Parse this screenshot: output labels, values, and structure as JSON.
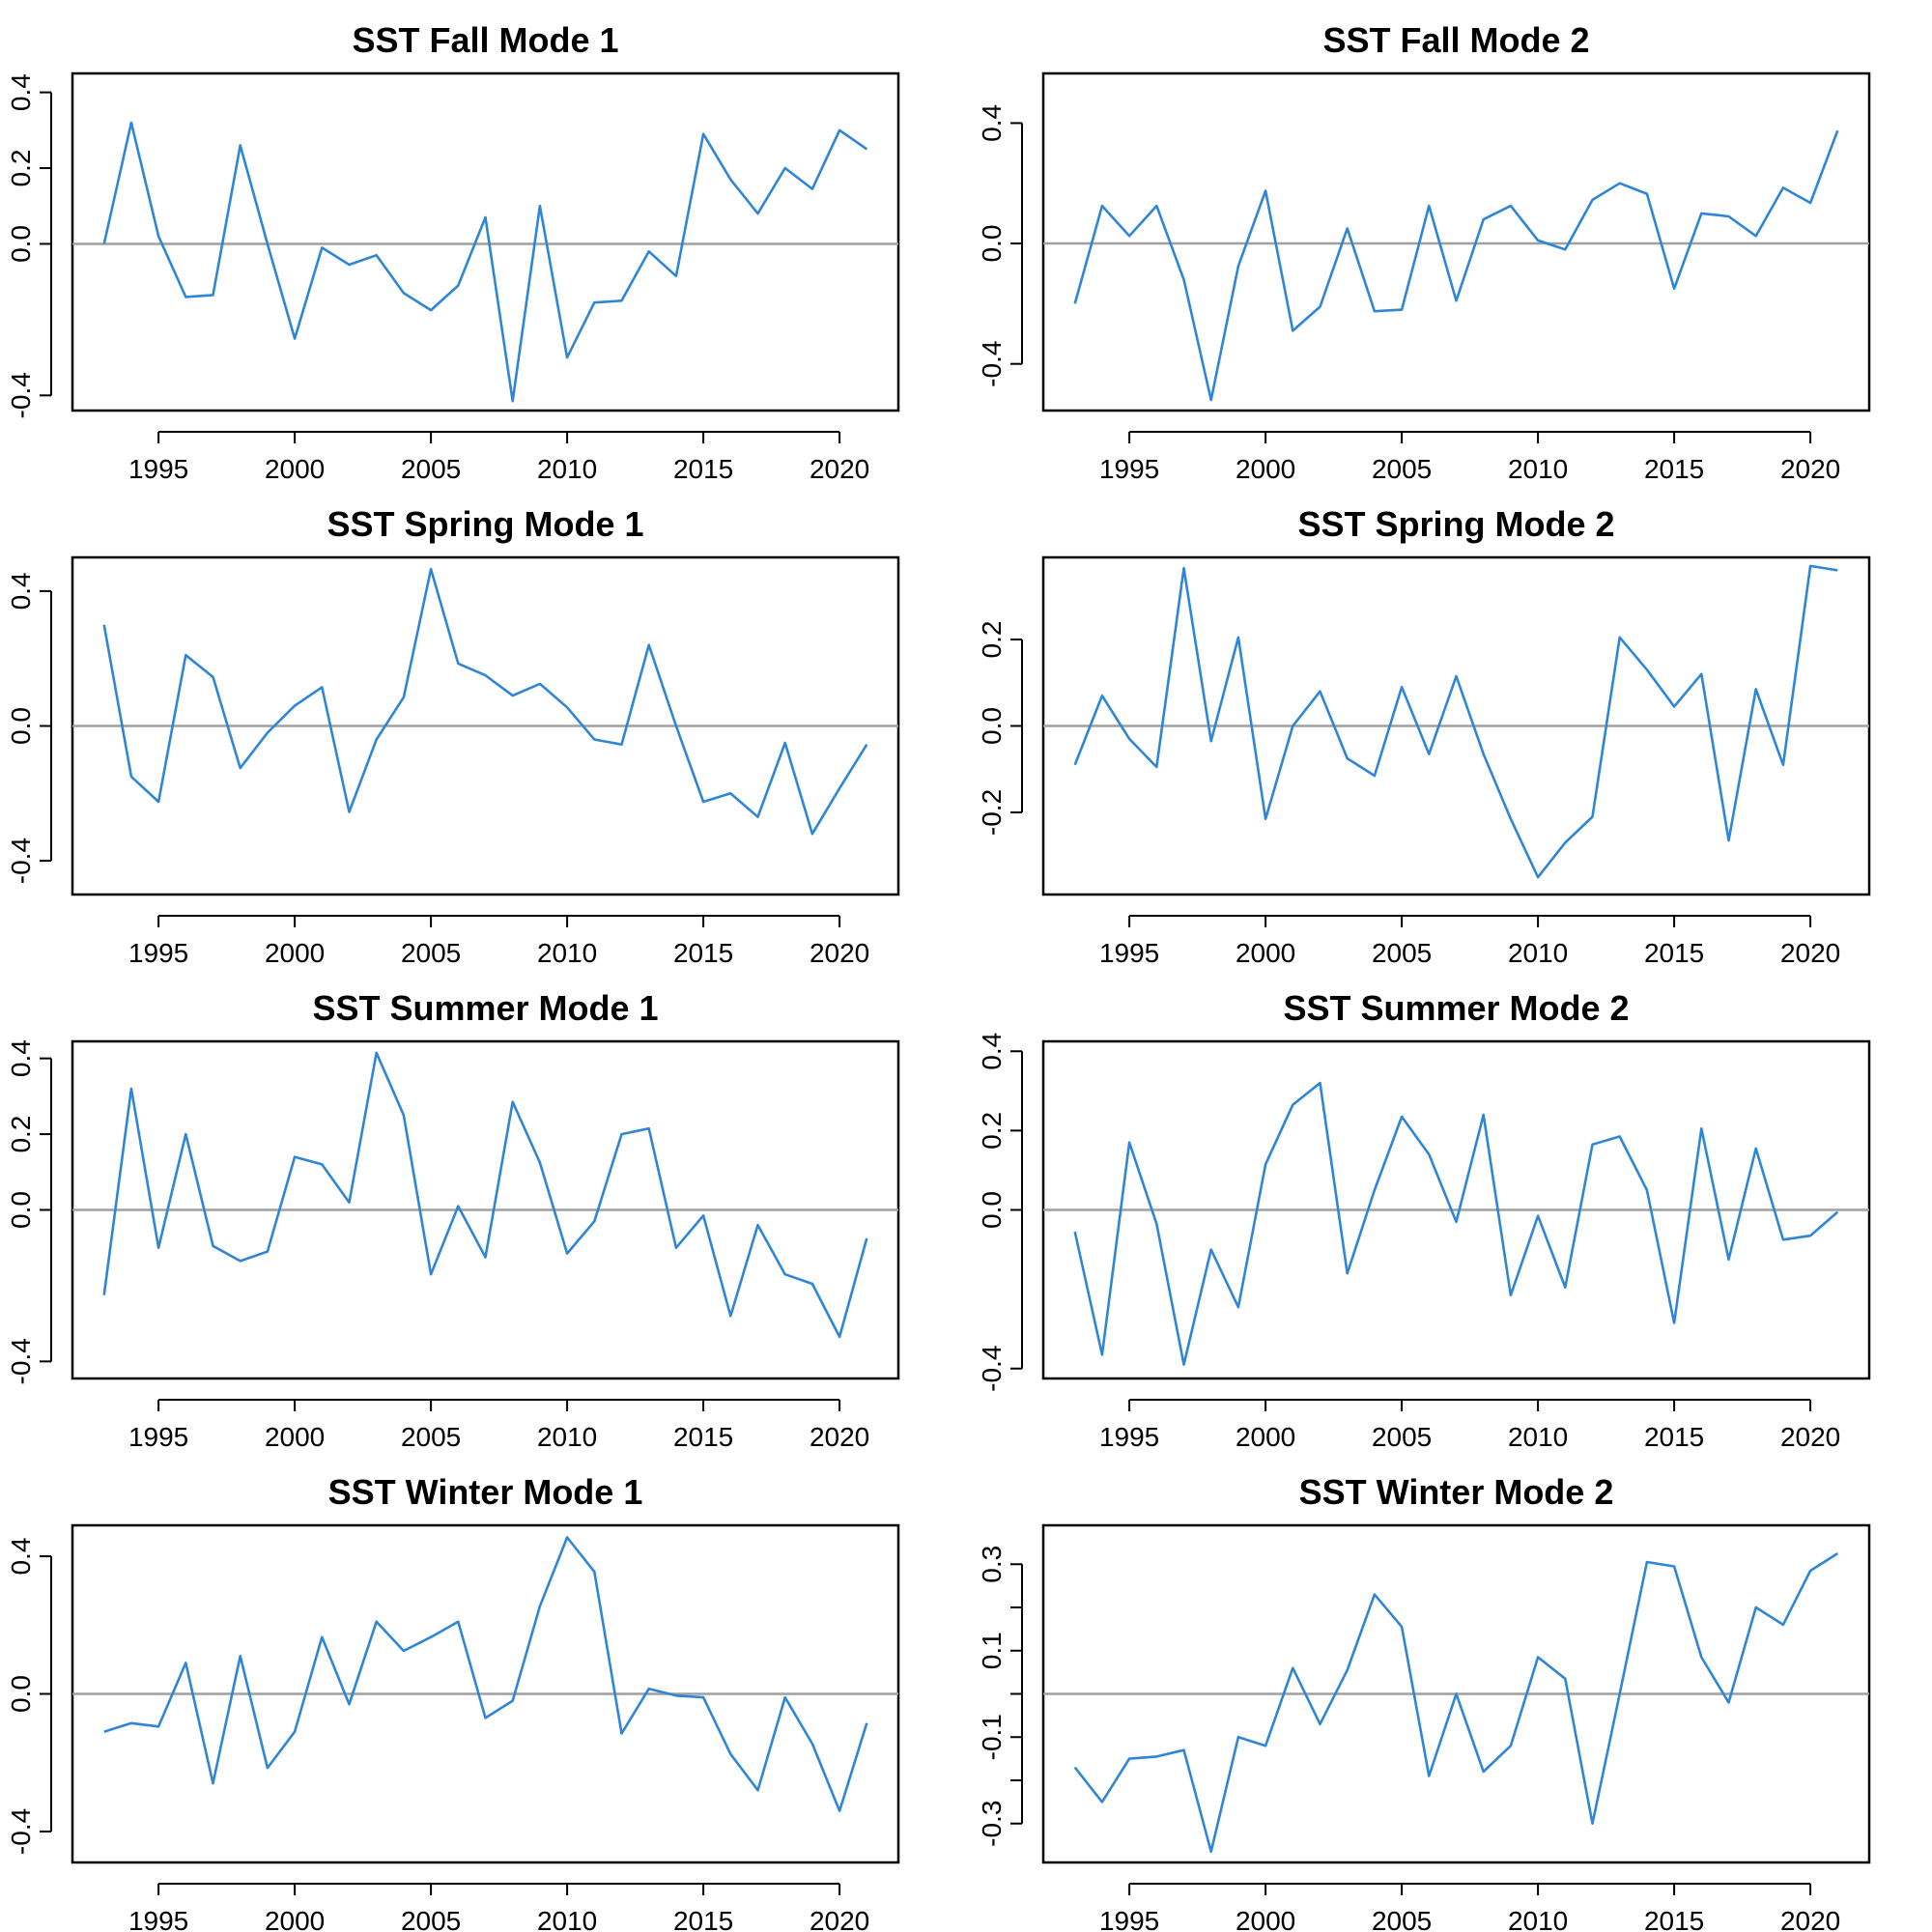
{
  "style": {
    "line_color": "#2f86d6",
    "zero_color": "#a0a0a0"
  },
  "chart_data": [
    {
      "type": "line",
      "title": "SST Fall Mode 1",
      "x": [
        1993,
        1994,
        1995,
        1996,
        1997,
        1998,
        1999,
        2000,
        2001,
        2002,
        2003,
        2004,
        2005,
        2006,
        2007,
        2008,
        2009,
        2010,
        2011,
        2012,
        2013,
        2014,
        2015,
        2016,
        2017,
        2018,
        2019,
        2020,
        2021
      ],
      "series": [
        {
          "values": [
            0.0,
            0.32,
            0.02,
            -0.14,
            -0.135,
            0.26,
            0.0,
            -0.25,
            -0.01,
            -0.055,
            -0.03,
            -0.13,
            -0.175,
            -0.11,
            0.07,
            -0.415,
            0.1,
            -0.3,
            -0.155,
            -0.15,
            -0.02,
            -0.085,
            0.29,
            0.17,
            0.08,
            0.2,
            0.145,
            0.3,
            0.25
          ]
        }
      ],
      "xticks": [
        1995,
        2000,
        2005,
        2010,
        2015,
        2020
      ],
      "yticks": [
        -0.4,
        0.0,
        0.2,
        0.4
      ],
      "ytick_labels": [
        "-0.4",
        "0.0",
        "0.2",
        "0.4"
      ],
      "ylim": [
        -0.44,
        0.45
      ],
      "xlim": [
        1991.84,
        2022.16
      ],
      "zero_line": true
    },
    {
      "type": "line",
      "title": "SST Fall Mode 2",
      "x": [
        1993,
        1994,
        1995,
        1996,
        1997,
        1998,
        1999,
        2000,
        2001,
        2002,
        2003,
        2004,
        2005,
        2006,
        2007,
        2008,
        2009,
        2010,
        2011,
        2012,
        2013,
        2014,
        2015,
        2016,
        2017,
        2018,
        2019,
        2020,
        2021
      ],
      "series": [
        {
          "values": [
            -0.2,
            0.125,
            0.025,
            0.125,
            -0.12,
            -0.52,
            -0.075,
            0.175,
            -0.29,
            -0.21,
            0.05,
            -0.225,
            -0.22,
            0.125,
            -0.19,
            0.08,
            0.125,
            0.01,
            -0.02,
            0.145,
            0.2,
            0.165,
            -0.15,
            0.1,
            0.09,
            0.025,
            0.185,
            0.135,
            0.375
          ]
        }
      ],
      "xticks": [
        1995,
        2000,
        2005,
        2010,
        2015,
        2020
      ],
      "yticks": [
        -0.4,
        0.0,
        0.4
      ],
      "ytick_labels": [
        "-0.4",
        "0.0",
        "0.4"
      ],
      "ylim": [
        -0.555,
        0.565
      ],
      "xlim": [
        1991.84,
        2022.16
      ],
      "zero_line": true
    },
    {
      "type": "line",
      "title": "SST Spring Mode 1",
      "x": [
        1993,
        1994,
        1995,
        1996,
        1997,
        1998,
        1999,
        2000,
        2001,
        2002,
        2003,
        2004,
        2005,
        2006,
        2007,
        2008,
        2009,
        2010,
        2011,
        2012,
        2013,
        2014,
        2015,
        2016,
        2017,
        2018,
        2019,
        2020,
        2021
      ],
      "series": [
        {
          "values": [
            0.3,
            -0.15,
            -0.225,
            0.21,
            0.145,
            -0.125,
            -0.02,
            0.06,
            0.115,
            -0.255,
            -0.04,
            0.085,
            0.465,
            0.185,
            0.15,
            0.09,
            0.125,
            0.055,
            -0.04,
            -0.055,
            0.24,
            0.0,
            -0.225,
            -0.2,
            -0.27,
            -0.05,
            -0.32,
            -0.185,
            -0.055
          ]
        }
      ],
      "xticks": [
        1995,
        2000,
        2005,
        2010,
        2015,
        2020
      ],
      "yticks": [
        -0.4,
        0.0,
        0.4
      ],
      "ytick_labels": [
        "-0.4",
        "0.0",
        "0.4"
      ],
      "ylim": [
        -0.5,
        0.5
      ],
      "xlim": [
        1991.84,
        2022.16
      ],
      "zero_line": true
    },
    {
      "type": "line",
      "title": "SST Spring Mode 2",
      "x": [
        1993,
        1994,
        1995,
        1996,
        1997,
        1998,
        1999,
        2000,
        2001,
        2002,
        2003,
        2004,
        2005,
        2006,
        2007,
        2008,
        2009,
        2010,
        2011,
        2012,
        2013,
        2014,
        2015,
        2016,
        2017,
        2018,
        2019,
        2020,
        2021
      ],
      "series": [
        {
          "values": [
            -0.09,
            0.07,
            -0.03,
            -0.095,
            0.365,
            -0.035,
            0.205,
            -0.215,
            0.0,
            0.08,
            -0.075,
            -0.115,
            0.09,
            -0.065,
            0.115,
            -0.065,
            -0.215,
            -0.35,
            -0.27,
            -0.21,
            0.205,
            0.13,
            0.045,
            0.12,
            -0.265,
            0.085,
            -0.09,
            0.37,
            0.36
          ]
        }
      ],
      "xticks": [
        1995,
        2000,
        2005,
        2010,
        2015,
        2020
      ],
      "yticks": [
        -0.2,
        0.0,
        0.2
      ],
      "ytick_labels": [
        "-0.2",
        "0.0",
        "0.2"
      ],
      "ylim": [
        -0.39,
        0.39
      ],
      "xlim": [
        1991.84,
        2022.16
      ],
      "zero_line": true
    },
    {
      "type": "line",
      "title": "SST Summer Mode 1",
      "x": [
        1993,
        1994,
        1995,
        1996,
        1997,
        1998,
        1999,
        2000,
        2001,
        2002,
        2003,
        2004,
        2005,
        2006,
        2007,
        2008,
        2009,
        2010,
        2011,
        2012,
        2013,
        2014,
        2015,
        2016,
        2017,
        2018,
        2019,
        2020,
        2021
      ],
      "series": [
        {
          "values": [
            -0.225,
            0.32,
            -0.1,
            0.2,
            -0.095,
            -0.135,
            -0.11,
            0.14,
            0.12,
            0.02,
            0.415,
            0.25,
            -0.17,
            0.01,
            -0.125,
            0.285,
            0.125,
            -0.115,
            -0.03,
            0.2,
            0.215,
            -0.1,
            -0.015,
            -0.28,
            -0.04,
            -0.17,
            -0.195,
            -0.335,
            -0.075
          ]
        }
      ],
      "xticks": [
        1995,
        2000,
        2005,
        2010,
        2015,
        2020
      ],
      "yticks": [
        -0.4,
        0.0,
        0.2,
        0.4
      ],
      "ytick_labels": [
        "-0.4",
        "0.0",
        "0.2",
        "0.4"
      ],
      "ylim": [
        -0.445,
        0.445
      ],
      "xlim": [
        1991.84,
        2022.16
      ],
      "zero_line": true
    },
    {
      "type": "line",
      "title": "SST Summer Mode 2",
      "x": [
        1993,
        1994,
        1995,
        1996,
        1997,
        1998,
        1999,
        2000,
        2001,
        2002,
        2003,
        2004,
        2005,
        2006,
        2007,
        2008,
        2009,
        2010,
        2011,
        2012,
        2013,
        2014,
        2015,
        2016,
        2017,
        2018,
        2019,
        2020,
        2021
      ],
      "series": [
        {
          "values": [
            -0.055,
            -0.365,
            0.17,
            -0.035,
            -0.39,
            -0.1,
            -0.245,
            0.115,
            0.265,
            0.32,
            -0.16,
            0.05,
            0.235,
            0.14,
            -0.03,
            0.24,
            -0.215,
            -0.015,
            -0.195,
            0.165,
            0.185,
            0.05,
            -0.285,
            0.205,
            -0.125,
            0.155,
            -0.075,
            -0.065,
            -0.005
          ]
        }
      ],
      "xticks": [
        1995,
        2000,
        2005,
        2010,
        2015,
        2020
      ],
      "yticks": [
        -0.4,
        0.0,
        0.2,
        0.4
      ],
      "ytick_labels": [
        "-0.4",
        "0.0",
        "0.2",
        "0.4"
      ],
      "ylim": [
        -0.425,
        0.425
      ],
      "xlim": [
        1991.84,
        2022.16
      ],
      "zero_line": true
    },
    {
      "type": "line",
      "title": "SST Winter Mode 1",
      "x": [
        1993,
        1994,
        1995,
        1996,
        1997,
        1998,
        1999,
        2000,
        2001,
        2002,
        2003,
        2004,
        2005,
        2006,
        2007,
        2008,
        2009,
        2010,
        2011,
        2012,
        2013,
        2014,
        2015,
        2016,
        2017,
        2018,
        2019,
        2020,
        2021
      ],
      "series": [
        {
          "values": [
            -0.11,
            -0.085,
            -0.095,
            0.09,
            -0.26,
            0.11,
            -0.215,
            -0.11,
            0.165,
            -0.03,
            0.21,
            0.125,
            0.165,
            0.21,
            -0.07,
            -0.02,
            0.255,
            0.455,
            0.355,
            -0.115,
            0.015,
            -0.005,
            -0.01,
            -0.175,
            -0.28,
            -0.01,
            -0.145,
            -0.34,
            -0.085
          ]
        }
      ],
      "xticks": [
        1995,
        2000,
        2005,
        2010,
        2015,
        2020
      ],
      "yticks": [
        -0.4,
        0.0,
        0.4
      ],
      "ytick_labels": [
        "-0.4",
        "0.0",
        "0.4"
      ],
      "ylim": [
        -0.49,
        0.49
      ],
      "xlim": [
        1991.84,
        2022.16
      ],
      "zero_line": true
    },
    {
      "type": "line",
      "title": "SST Winter Mode 2",
      "x": [
        1993,
        1994,
        1995,
        1996,
        1997,
        1998,
        1999,
        2000,
        2001,
        2002,
        2003,
        2004,
        2005,
        2006,
        2007,
        2008,
        2009,
        2010,
        2011,
        2012,
        2013,
        2014,
        2015,
        2016,
        2017,
        2018,
        2019,
        2020,
        2021
      ],
      "series": [
        {
          "values": [
            -0.17,
            -0.25,
            -0.15,
            -0.145,
            -0.13,
            -0.365,
            -0.1,
            -0.12,
            0.06,
            -0.07,
            0.055,
            0.23,
            0.155,
            -0.19,
            0.0,
            -0.18,
            -0.12,
            0.085,
            0.035,
            -0.3,
            0.0,
            0.305,
            0.295,
            0.085,
            -0.02,
            0.2,
            0.16,
            0.285,
            0.325
          ]
        }
      ],
      "xticks": [
        1995,
        2000,
        2005,
        2010,
        2015,
        2020
      ],
      "yticks": [
        -0.3,
        -0.2,
        -0.1,
        0.0,
        0.1,
        0.2,
        0.3
      ],
      "ytick_labels": [
        "-0.3",
        "",
        "-0.1",
        "",
        "0.1",
        "",
        "0.3"
      ],
      "ylim": [
        -0.39,
        0.39
      ],
      "xlim": [
        1991.84,
        2022.16
      ],
      "zero_line": true
    }
  ]
}
